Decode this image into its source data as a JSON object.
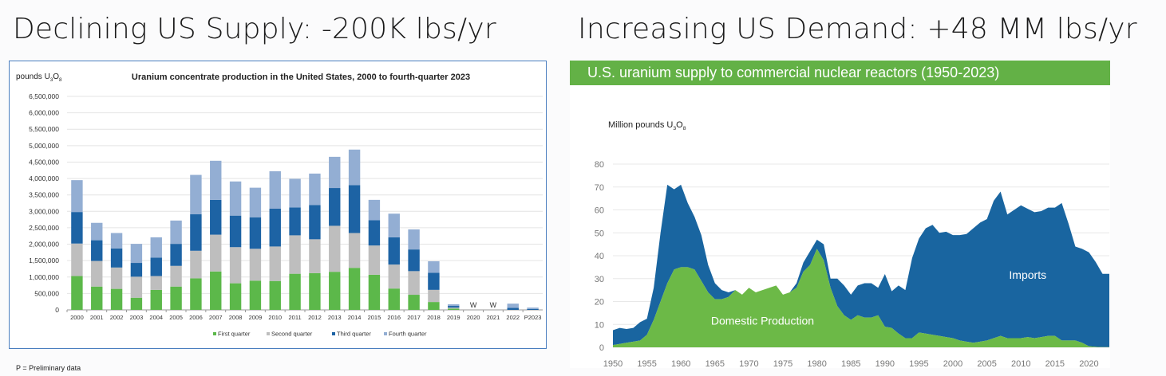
{
  "headings": {
    "left": "Declining US Supply: -200K lbs/yr",
    "right": "Increasing US Demand: +48 MM lbs/yr"
  },
  "footnote": "P = Preliminary data",
  "colors": {
    "q1": "#5cb84a",
    "q2": "#bebebe",
    "q3": "#1d63a4",
    "q4": "#93aed3",
    "imports": "#1965a0",
    "domestic": "#6cb947",
    "banner": "#63b146"
  },
  "chart_data": [
    {
      "type": "bar",
      "stacked": true,
      "title": "Uranium concentrate production in the United States, 2000 to fourth-quarter 2023",
      "ylabel_main": "pounds U",
      "ylabel_sub1": "3",
      "ylabel_mid": "O",
      "ylabel_sub2": "8",
      "ylim": [
        0,
        6500000
      ],
      "yticks": [
        0,
        500000,
        1000000,
        1500000,
        2000000,
        2500000,
        3000000,
        3500000,
        4000000,
        4500000,
        5000000,
        5500000,
        6000000,
        6500000
      ],
      "ytick_labels": [
        "0",
        "500,000",
        "1,000,000",
        "1,500,000",
        "2,000,000",
        "2,500,000",
        "3,000,000",
        "3,500,000",
        "4,000,000",
        "4,500,000",
        "5,000,000",
        "5,500,000",
        "6,000,000",
        "6,500,000"
      ],
      "categories": [
        "2000",
        "2001",
        "2002",
        "2003",
        "2004",
        "2005",
        "2006",
        "2007",
        "2008",
        "2009",
        "2010",
        "2011",
        "2012",
        "2013",
        "2014",
        "2015",
        "2016",
        "2017",
        "2018",
        "2019",
        "2020",
        "2021",
        "2022",
        "P2023"
      ],
      "series": [
        {
          "name": "First quarter",
          "values": [
            1030000,
            710000,
            640000,
            370000,
            610000,
            710000,
            960000,
            1170000,
            810000,
            890000,
            880000,
            1100000,
            1120000,
            1160000,
            1280000,
            1070000,
            650000,
            460000,
            240000,
            40000,
            0,
            0,
            0,
            0
          ]
        },
        {
          "name": "Second quarter",
          "values": [
            990000,
            780000,
            650000,
            640000,
            420000,
            630000,
            840000,
            1120000,
            1100000,
            970000,
            1050000,
            1170000,
            1030000,
            1400000,
            1060000,
            890000,
            730000,
            720000,
            370000,
            30000,
            0,
            0,
            0,
            0
          ]
        },
        {
          "name": "Third quarter",
          "values": [
            960000,
            630000,
            580000,
            420000,
            560000,
            670000,
            1110000,
            1060000,
            960000,
            960000,
            1150000,
            850000,
            1040000,
            1150000,
            1460000,
            770000,
            830000,
            660000,
            520000,
            50000,
            0,
            0,
            60000,
            30000
          ]
        },
        {
          "name": "Fourth quarter",
          "values": [
            970000,
            530000,
            470000,
            580000,
            620000,
            710000,
            1200000,
            1190000,
            1040000,
            900000,
            1140000,
            870000,
            960000,
            950000,
            1080000,
            620000,
            720000,
            610000,
            350000,
            50000,
            0,
            0,
            130000,
            40000
          ]
        }
      ],
      "annotations": [
        {
          "category": "2020",
          "text": "W"
        },
        {
          "category": "2021",
          "text": "W"
        }
      ]
    },
    {
      "type": "area",
      "stacked": true,
      "title": "U.S. uranium supply to commercial nuclear reactors (1950-2023)",
      "ylabel_main": "Million pounds U",
      "ylabel_sub1": "3",
      "ylabel_mid": "O",
      "ylabel_sub2": "8",
      "xlim": [
        1950,
        2023
      ],
      "ylim": [
        0,
        80
      ],
      "xticks": [
        1950,
        1955,
        1960,
        1965,
        1970,
        1975,
        1980,
        1985,
        1990,
        1995,
        2000,
        2005,
        2010,
        2015,
        2020
      ],
      "yticks": [
        0,
        10,
        20,
        30,
        40,
        50,
        60,
        70,
        80
      ],
      "x": [
        1950,
        1951,
        1952,
        1953,
        1954,
        1955,
        1956,
        1957,
        1958,
        1959,
        1960,
        1961,
        1962,
        1963,
        1964,
        1965,
        1966,
        1967,
        1968,
        1969,
        1970,
        1971,
        1972,
        1973,
        1974,
        1975,
        1976,
        1977,
        1978,
        1979,
        1980,
        1981,
        1982,
        1983,
        1984,
        1985,
        1986,
        1987,
        1988,
        1989,
        1990,
        1991,
        1992,
        1993,
        1994,
        1995,
        1996,
        1997,
        1998,
        1999,
        2000,
        2001,
        2002,
        2003,
        2004,
        2005,
        2006,
        2007,
        2008,
        2009,
        2010,
        2011,
        2012,
        2013,
        2014,
        2015,
        2016,
        2017,
        2018,
        2019,
        2020,
        2021,
        2022,
        2023
      ],
      "series": [
        {
          "name": "Domestic Production",
          "label": "Domestic Production",
          "values": [
            1,
            1.5,
            2,
            2.5,
            3,
            5.5,
            12,
            20,
            28,
            34,
            35,
            35,
            34,
            29,
            24,
            21,
            21,
            22,
            25,
            23,
            26,
            24,
            25,
            26,
            27,
            23,
            24,
            26,
            33,
            36,
            43,
            38,
            26,
            18,
            14,
            12,
            14,
            13,
            13,
            14,
            9,
            8.5,
            6,
            4,
            4,
            6.5,
            6,
            5.5,
            5,
            4.5,
            4,
            3,
            2.5,
            2,
            2.5,
            3,
            4,
            5,
            4,
            4,
            4,
            4.5,
            4,
            4.5,
            5,
            5,
            3,
            3,
            3,
            2,
            0.5,
            0.2,
            0.1,
            0.1
          ]
        },
        {
          "name": "Imports",
          "label": "Imports",
          "values": [
            6.5,
            7,
            6,
            6,
            8,
            7,
            14,
            30,
            43,
            35,
            36,
            28,
            23,
            20,
            12,
            7,
            4,
            2,
            0,
            0,
            0,
            0,
            0,
            0,
            0,
            0,
            0,
            2,
            4,
            6,
            4,
            7,
            4,
            12,
            13,
            11,
            13,
            15,
            15,
            12,
            23,
            16,
            21,
            21,
            35,
            41,
            46,
            48,
            45,
            46,
            45,
            46,
            47,
            50,
            52,
            53,
            60,
            63,
            54,
            56,
            58,
            56,
            55,
            55,
            56,
            56,
            60,
            51,
            41,
            41,
            41,
            37,
            32,
            32
          ]
        }
      ]
    }
  ]
}
